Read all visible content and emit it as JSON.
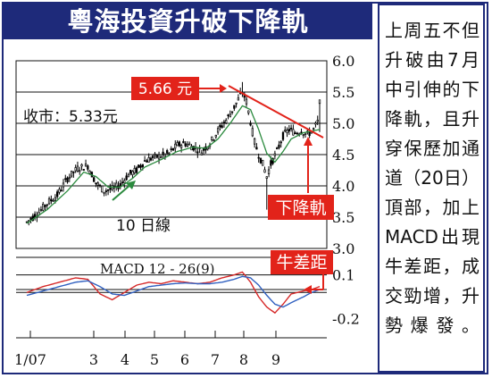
{
  "title": "粵海投資升破下降軌",
  "side_text": "上周五不但升破由7月中引伸的下降軌，且升穿保歷加通道（20日）頂部，加上MACD出現牛差距，成交勁增，升勢爆發。",
  "colors": {
    "brand_navy": "#1e2a7a",
    "annotation_red": "#e2231a",
    "ma_green": "#2b8a3e",
    "macd_red": "#d62828",
    "signal_blue": "#3060c0",
    "candle": "#000000"
  },
  "chart_data": [
    {
      "type": "candlestick",
      "x_tick_labels": [
        "1/07",
        "3",
        "4",
        "5",
        "6",
        "7",
        "8",
        "9"
      ],
      "y_ticks": [
        3.0,
        3.5,
        4.0,
        4.5,
        5.0,
        5.5,
        6.0
      ],
      "y_tick_labels": [
        "3.0",
        "3.5",
        "4.0",
        "4.5",
        "5.0",
        "5.5",
        "6.0"
      ],
      "ylim": [
        3.0,
        6.0
      ],
      "grid": "horizontal",
      "close_label": "收市：5.33元",
      "peak_label": "5.66 元",
      "peak_value": 5.66,
      "ma_label": "10 日線",
      "trendline_label": "下降軌",
      "price_anchors": [
        [
          0,
          3.42
        ],
        [
          6,
          3.58
        ],
        [
          10,
          3.72
        ],
        [
          15,
          3.85
        ],
        [
          20,
          4.12
        ],
        [
          25,
          4.28
        ],
        [
          30,
          4.32
        ],
        [
          34,
          4.05
        ],
        [
          38,
          3.92
        ],
        [
          42,
          3.95
        ],
        [
          46,
          4.02
        ],
        [
          50,
          4.18
        ],
        [
          54,
          4.25
        ],
        [
          58,
          4.4
        ],
        [
          62,
          4.45
        ],
        [
          66,
          4.48
        ],
        [
          70,
          4.52
        ],
        [
          74,
          4.65
        ],
        [
          78,
          4.68
        ],
        [
          82,
          4.62
        ],
        [
          86,
          4.55
        ],
        [
          90,
          4.68
        ],
        [
          94,
          4.88
        ],
        [
          98,
          5.05
        ],
        [
          101,
          5.2
        ],
        [
          104,
          5.38
        ],
        [
          106,
          5.5
        ],
        [
          108,
          5.35
        ],
        [
          110,
          5.02
        ],
        [
          112,
          4.7
        ],
        [
          114,
          4.5
        ],
        [
          116,
          4.35
        ],
        [
          118,
          4.15
        ],
        [
          120,
          4.35
        ],
        [
          123,
          4.55
        ],
        [
          126,
          4.8
        ],
        [
          129,
          4.9
        ],
        [
          132,
          4.85
        ],
        [
          135,
          4.88
        ],
        [
          138,
          4.82
        ],
        [
          141,
          4.9
        ],
        [
          143,
          5.02
        ],
        [
          144,
          5.33
        ]
      ],
      "ma_anchors": [
        [
          0,
          3.4
        ],
        [
          10,
          3.62
        ],
        [
          20,
          3.92
        ],
        [
          28,
          4.22
        ],
        [
          34,
          4.15
        ],
        [
          40,
          3.98
        ],
        [
          46,
          3.98
        ],
        [
          52,
          4.12
        ],
        [
          58,
          4.3
        ],
        [
          66,
          4.42
        ],
        [
          74,
          4.55
        ],
        [
          82,
          4.62
        ],
        [
          88,
          4.6
        ],
        [
          94,
          4.75
        ],
        [
          100,
          5.0
        ],
        [
          106,
          5.28
        ],
        [
          110,
          5.22
        ],
        [
          114,
          4.9
        ],
        [
          118,
          4.52
        ],
        [
          122,
          4.38
        ],
        [
          126,
          4.55
        ],
        [
          130,
          4.75
        ],
        [
          136,
          4.85
        ],
        [
          144,
          4.9
        ]
      ]
    },
    {
      "type": "line",
      "title": "MACD 12 - 26(9)",
      "signal_label": "牛差距",
      "y_ticks": [
        0.1,
        -0.2
      ],
      "y_tick_labels": [
        "0.1",
        "-0.2"
      ],
      "ylim": [
        -0.22,
        0.22
      ],
      "series": [
        {
          "values": [
            [
              0,
              -0.02
            ],
            [
              8,
              0.02
            ],
            [
              16,
              0.05
            ],
            [
              24,
              0.08
            ],
            [
              30,
              0.07
            ],
            [
              36,
              -0.03
            ],
            [
              42,
              -0.07
            ],
            [
              48,
              -0.02
            ],
            [
              54,
              0.03
            ],
            [
              60,
              0.05
            ],
            [
              66,
              0.04
            ],
            [
              72,
              0.06
            ],
            [
              78,
              0.05
            ],
            [
              84,
              0.04
            ],
            [
              90,
              0.05
            ],
            [
              96,
              0.08
            ],
            [
              102,
              0.1
            ],
            [
              106,
              0.12
            ],
            [
              110,
              0.05
            ],
            [
              114,
              -0.05
            ],
            [
              118,
              -0.12
            ],
            [
              122,
              -0.16
            ],
            [
              126,
              -0.1
            ],
            [
              130,
              -0.03
            ],
            [
              136,
              -0.01
            ],
            [
              140,
              0.0
            ],
            [
              144,
              0.02
            ]
          ]
        },
        {
          "values": [
            [
              0,
              -0.04
            ],
            [
              8,
              -0.01
            ],
            [
              16,
              0.02
            ],
            [
              24,
              0.05
            ],
            [
              30,
              0.06
            ],
            [
              36,
              0.02
            ],
            [
              42,
              -0.03
            ],
            [
              48,
              -0.04
            ],
            [
              54,
              -0.01
            ],
            [
              60,
              0.02
            ],
            [
              66,
              0.03
            ],
            [
              72,
              0.04
            ],
            [
              78,
              0.045
            ],
            [
              84,
              0.04
            ],
            [
              90,
              0.04
            ],
            [
              96,
              0.05
            ],
            [
              102,
              0.07
            ],
            [
              106,
              0.09
            ],
            [
              110,
              0.08
            ],
            [
              114,
              0.03
            ],
            [
              118,
              -0.04
            ],
            [
              122,
              -0.1
            ],
            [
              126,
              -0.12
            ],
            [
              130,
              -0.09
            ],
            [
              136,
              -0.05
            ],
            [
              140,
              -0.02
            ],
            [
              144,
              0.0
            ]
          ]
        }
      ]
    }
  ]
}
